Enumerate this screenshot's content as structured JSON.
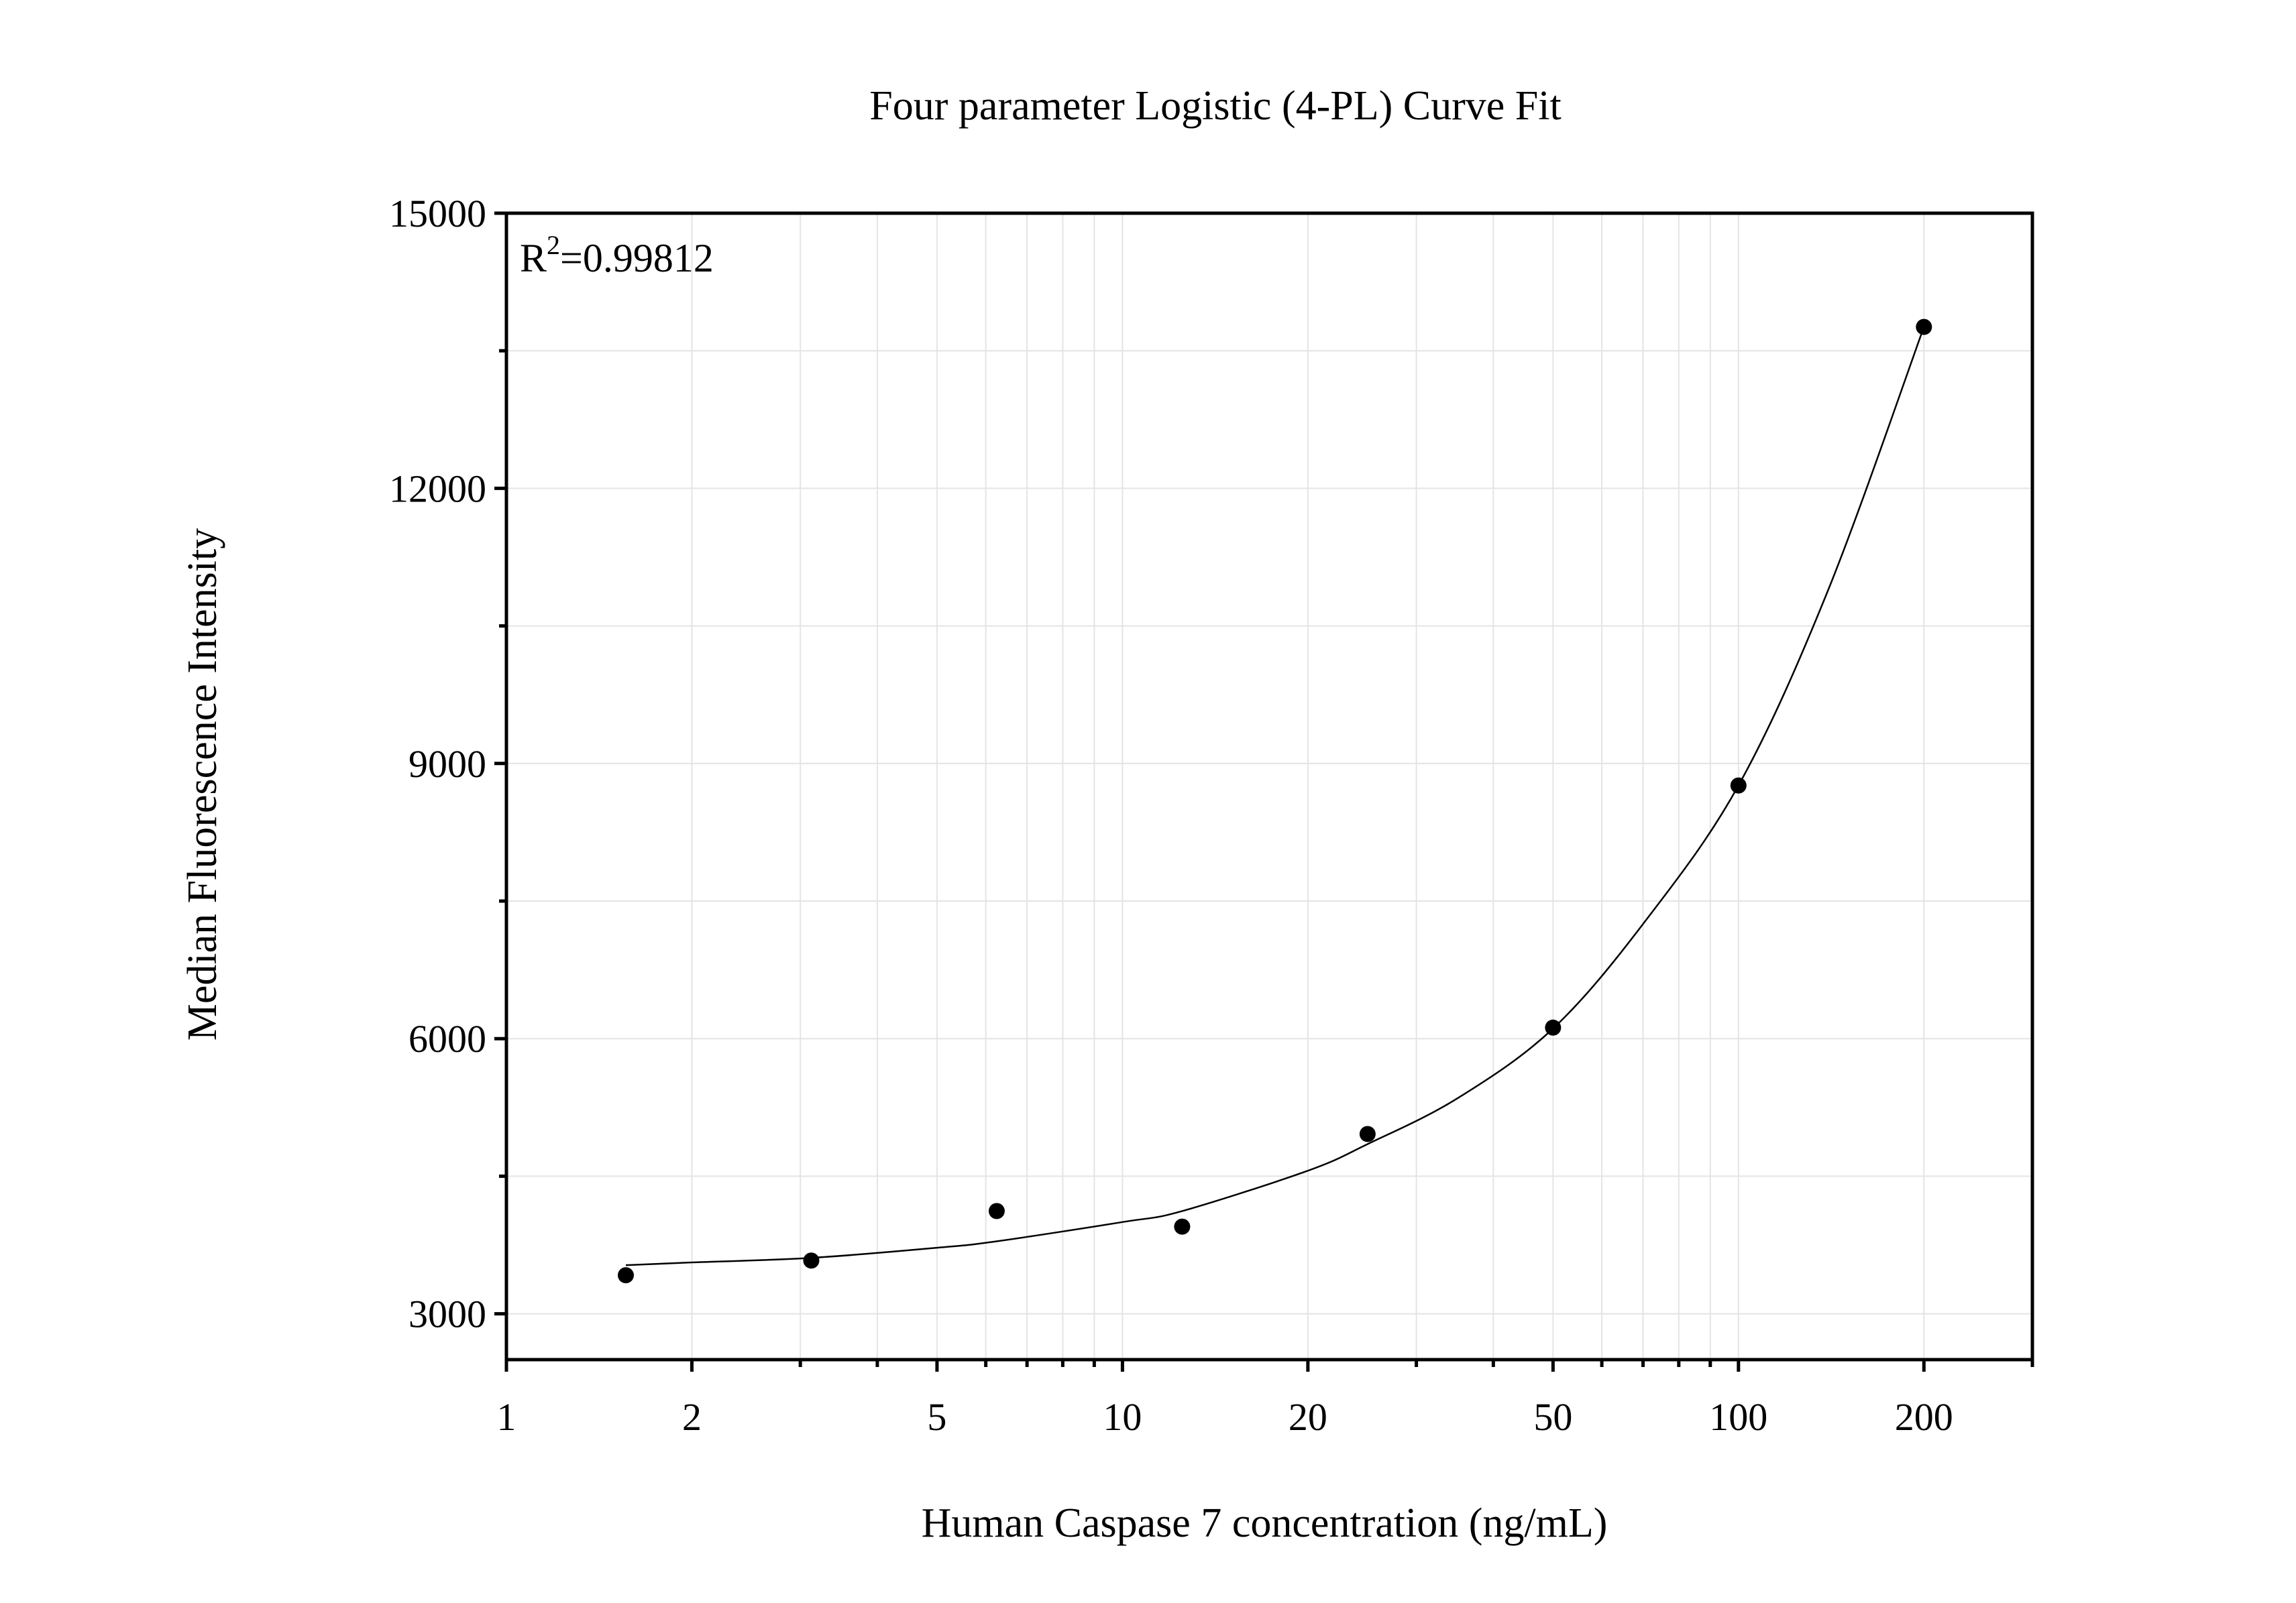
{
  "chart_data": {
    "type": "scatter",
    "title": "Four parameter Logistic (4-PL) Curve Fit",
    "xlabel": "Human Caspase 7 concentration (ng/mL)",
    "ylabel": "Median Fluorescence Intensity",
    "x_scale": "log",
    "xlim": [
      1,
      300
    ],
    "ylim": [
      2500,
      15000
    ],
    "x_ticks": [
      1,
      2,
      5,
      10,
      20,
      50,
      100,
      200
    ],
    "y_ticks": [
      3000,
      6000,
      9000,
      12000,
      15000
    ],
    "grid": true,
    "annotation": {
      "base": "R",
      "superscript": "2",
      "rest": "=0.99812",
      "placement": "top-left"
    },
    "series": [
      {
        "type": "scatter",
        "x": [
          1.5625,
          3.125,
          6.25,
          12.5,
          25,
          50,
          100,
          200
        ],
        "y": [
          3420,
          3580,
          4120,
          3950,
          4960,
          6120,
          8760,
          13760
        ]
      },
      {
        "type": "line",
        "fit": "4-PL",
        "x": [
          1.5625,
          2,
          3.125,
          5,
          6.25,
          10,
          12.5,
          20,
          25,
          35,
          50,
          70,
          100,
          140,
          200
        ],
        "y": [
          3530,
          3560,
          3610,
          3720,
          3790,
          4000,
          4120,
          4560,
          4850,
          5350,
          6110,
          7250,
          8760,
          10900,
          13760
        ]
      }
    ]
  }
}
